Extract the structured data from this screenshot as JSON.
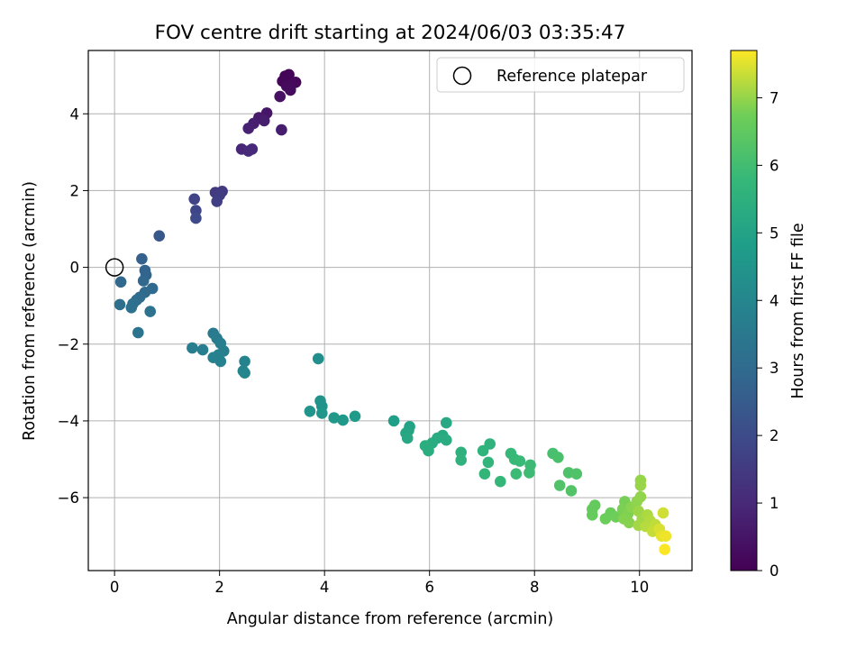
{
  "chart_data": {
    "type": "scatter",
    "title": "FOV centre drift starting at 2024/06/03 03:35:47",
    "xlabel": "Angular distance from reference (arcmin)",
    "ylabel": "Rotation from reference (arcmin)",
    "xlim": [
      -0.5,
      11
    ],
    "ylim": [
      -7.9,
      5.65
    ],
    "xticks": [
      0,
      2,
      4,
      6,
      8,
      10
    ],
    "yticks": [
      -6,
      -4,
      -2,
      0,
      2,
      4
    ],
    "grid": true,
    "legend": {
      "placement": "top-right",
      "entries": [
        {
          "label": "Reference platepar",
          "marker": "open-circle"
        }
      ]
    },
    "reference_point": {
      "x": 0,
      "y": 0
    },
    "colorbar": {
      "label": "Hours from first FF file",
      "range": [
        0,
        7.7
      ],
      "ticks": [
        0,
        1,
        2,
        3,
        4,
        5,
        6,
        7
      ],
      "colormap": "viridis"
    },
    "points": [
      {
        "x": 3.25,
        "y": 4.98,
        "h": 0.05
      },
      {
        "x": 3.32,
        "y": 5.02,
        "h": 0.08
      },
      {
        "x": 3.2,
        "y": 4.85,
        "h": 0.12
      },
      {
        "x": 3.45,
        "y": 4.82,
        "h": 0.15
      },
      {
        "x": 3.38,
        "y": 4.78,
        "h": 0.18
      },
      {
        "x": 3.28,
        "y": 4.72,
        "h": 0.22
      },
      {
        "x": 3.35,
        "y": 4.62,
        "h": 0.28
      },
      {
        "x": 3.15,
        "y": 4.45,
        "h": 0.4
      },
      {
        "x": 2.9,
        "y": 4.02,
        "h": 0.55
      },
      {
        "x": 2.75,
        "y": 3.9,
        "h": 0.62
      },
      {
        "x": 2.85,
        "y": 3.82,
        "h": 0.68
      },
      {
        "x": 2.65,
        "y": 3.75,
        "h": 0.75
      },
      {
        "x": 3.18,
        "y": 3.58,
        "h": 0.72
      },
      {
        "x": 2.55,
        "y": 3.62,
        "h": 0.82
      },
      {
        "x": 2.42,
        "y": 3.08,
        "h": 0.95
      },
      {
        "x": 2.62,
        "y": 3.08,
        "h": 1.0
      },
      {
        "x": 2.55,
        "y": 3.03,
        "h": 1.05
      },
      {
        "x": 2.05,
        "y": 1.98,
        "h": 1.45
      },
      {
        "x": 1.92,
        "y": 1.95,
        "h": 1.5
      },
      {
        "x": 2.0,
        "y": 1.88,
        "h": 1.55
      },
      {
        "x": 1.95,
        "y": 1.72,
        "h": 1.62
      },
      {
        "x": 1.52,
        "y": 1.78,
        "h": 1.75
      },
      {
        "x": 1.55,
        "y": 1.48,
        "h": 1.85
      },
      {
        "x": 1.55,
        "y": 1.28,
        "h": 1.95
      },
      {
        "x": 0.85,
        "y": 0.82,
        "h": 2.35
      },
      {
        "x": 0.52,
        "y": 0.22,
        "h": 2.7
      },
      {
        "x": 0.58,
        "y": -0.08,
        "h": 2.75
      },
      {
        "x": 0.6,
        "y": -0.2,
        "h": 2.8
      },
      {
        "x": 0.55,
        "y": -0.35,
        "h": 2.85
      },
      {
        "x": 0.12,
        "y": -0.38,
        "h": 2.9
      },
      {
        "x": 0.72,
        "y": -0.55,
        "h": 2.95
      },
      {
        "x": 0.58,
        "y": -0.65,
        "h": 3.0
      },
      {
        "x": 0.48,
        "y": -0.78,
        "h": 3.05
      },
      {
        "x": 0.42,
        "y": -0.85,
        "h": 3.1
      },
      {
        "x": 0.1,
        "y": -0.97,
        "h": 3.15
      },
      {
        "x": 0.35,
        "y": -0.95,
        "h": 3.18
      },
      {
        "x": 0.32,
        "y": -1.05,
        "h": 3.22
      },
      {
        "x": 0.68,
        "y": -1.15,
        "h": 3.25
      },
      {
        "x": 0.45,
        "y": -1.7,
        "h": 3.3
      },
      {
        "x": 1.88,
        "y": -1.72,
        "h": 3.55
      },
      {
        "x": 1.95,
        "y": -1.85,
        "h": 3.6
      },
      {
        "x": 2.02,
        "y": -1.98,
        "h": 3.65
      },
      {
        "x": 1.48,
        "y": -2.1,
        "h": 3.7
      },
      {
        "x": 1.68,
        "y": -2.15,
        "h": 3.72
      },
      {
        "x": 2.08,
        "y": -2.18,
        "h": 3.75
      },
      {
        "x": 1.98,
        "y": -2.28,
        "h": 3.78
      },
      {
        "x": 1.88,
        "y": -2.35,
        "h": 3.8
      },
      {
        "x": 2.02,
        "y": -2.45,
        "h": 3.82
      },
      {
        "x": 2.48,
        "y": -2.45,
        "h": 3.88
      },
      {
        "x": 2.45,
        "y": -2.7,
        "h": 3.92
      },
      {
        "x": 2.48,
        "y": -2.75,
        "h": 3.95
      },
      {
        "x": 3.88,
        "y": -2.38,
        "h": 4.3
      },
      {
        "x": 3.92,
        "y": -3.48,
        "h": 4.4
      },
      {
        "x": 3.95,
        "y": -3.62,
        "h": 4.45
      },
      {
        "x": 3.72,
        "y": -3.75,
        "h": 4.5
      },
      {
        "x": 3.95,
        "y": -3.8,
        "h": 4.55
      },
      {
        "x": 4.18,
        "y": -3.92,
        "h": 4.6
      },
      {
        "x": 4.35,
        "y": -3.98,
        "h": 4.65
      },
      {
        "x": 4.58,
        "y": -3.88,
        "h": 4.7
      },
      {
        "x": 5.32,
        "y": -4.0,
        "h": 4.85
      },
      {
        "x": 5.62,
        "y": -4.15,
        "h": 5.0
      },
      {
        "x": 5.6,
        "y": -4.25,
        "h": 5.05
      },
      {
        "x": 5.55,
        "y": -4.32,
        "h": 5.1
      },
      {
        "x": 5.58,
        "y": -4.45,
        "h": 5.15
      },
      {
        "x": 6.32,
        "y": -4.05,
        "h": 5.2
      },
      {
        "x": 6.25,
        "y": -4.38,
        "h": 5.25
      },
      {
        "x": 6.15,
        "y": -4.45,
        "h": 5.3
      },
      {
        "x": 6.32,
        "y": -4.5,
        "h": 5.32
      },
      {
        "x": 6.05,
        "y": -4.58,
        "h": 5.35
      },
      {
        "x": 5.92,
        "y": -4.65,
        "h": 5.38
      },
      {
        "x": 5.98,
        "y": -4.78,
        "h": 5.4
      },
      {
        "x": 6.6,
        "y": -4.82,
        "h": 5.5
      },
      {
        "x": 6.6,
        "y": -5.02,
        "h": 5.55
      },
      {
        "x": 7.15,
        "y": -4.6,
        "h": 5.6
      },
      {
        "x": 7.02,
        "y": -4.78,
        "h": 5.62
      },
      {
        "x": 7.12,
        "y": -5.08,
        "h": 5.65
      },
      {
        "x": 7.05,
        "y": -5.38,
        "h": 5.7
      },
      {
        "x": 7.35,
        "y": -5.58,
        "h": 5.75
      },
      {
        "x": 7.55,
        "y": -4.85,
        "h": 5.8
      },
      {
        "x": 7.62,
        "y": -5.0,
        "h": 5.82
      },
      {
        "x": 7.72,
        "y": -5.05,
        "h": 5.85
      },
      {
        "x": 7.65,
        "y": -5.38,
        "h": 5.88
      },
      {
        "x": 7.92,
        "y": -5.15,
        "h": 5.9
      },
      {
        "x": 7.9,
        "y": -5.35,
        "h": 5.92
      },
      {
        "x": 8.35,
        "y": -4.85,
        "h": 6.1
      },
      {
        "x": 8.45,
        "y": -4.95,
        "h": 6.15
      },
      {
        "x": 8.65,
        "y": -5.35,
        "h": 6.2
      },
      {
        "x": 8.8,
        "y": -5.38,
        "h": 6.22
      },
      {
        "x": 8.48,
        "y": -5.68,
        "h": 6.25
      },
      {
        "x": 8.7,
        "y": -5.82,
        "h": 6.28
      },
      {
        "x": 9.15,
        "y": -6.2,
        "h": 6.55
      },
      {
        "x": 9.1,
        "y": -6.3,
        "h": 6.58
      },
      {
        "x": 9.1,
        "y": -6.45,
        "h": 6.6
      },
      {
        "x": 9.45,
        "y": -6.4,
        "h": 6.65
      },
      {
        "x": 9.35,
        "y": -6.55,
        "h": 6.68
      },
      {
        "x": 9.55,
        "y": -6.5,
        "h": 6.72
      },
      {
        "x": 9.72,
        "y": -6.1,
        "h": 6.8
      },
      {
        "x": 9.68,
        "y": -6.3,
        "h": 6.82
      },
      {
        "x": 9.78,
        "y": -6.42,
        "h": 6.85
      },
      {
        "x": 9.7,
        "y": -6.55,
        "h": 6.88
      },
      {
        "x": 9.8,
        "y": -6.65,
        "h": 6.9
      },
      {
        "x": 9.85,
        "y": -6.25,
        "h": 6.92
      },
      {
        "x": 9.95,
        "y": -6.1,
        "h": 6.95
      },
      {
        "x": 10.02,
        "y": -5.98,
        "h": 6.98
      },
      {
        "x": 10.02,
        "y": -5.55,
        "h": 7.0
      },
      {
        "x": 10.02,
        "y": -5.68,
        "h": 7.02
      },
      {
        "x": 9.98,
        "y": -6.35,
        "h": 7.05
      },
      {
        "x": 10.05,
        "y": -6.55,
        "h": 7.08
      },
      {
        "x": 9.98,
        "y": -6.72,
        "h": 7.1
      },
      {
        "x": 10.15,
        "y": -6.45,
        "h": 7.15
      },
      {
        "x": 10.2,
        "y": -6.6,
        "h": 7.2
      },
      {
        "x": 10.12,
        "y": -6.75,
        "h": 7.22
      },
      {
        "x": 10.3,
        "y": -6.7,
        "h": 7.28
      },
      {
        "x": 10.25,
        "y": -6.88,
        "h": 7.32
      },
      {
        "x": 10.45,
        "y": -6.4,
        "h": 7.4
      },
      {
        "x": 10.38,
        "y": -6.82,
        "h": 7.45
      },
      {
        "x": 10.42,
        "y": -7.0,
        "h": 7.55
      },
      {
        "x": 10.5,
        "y": -7.0,
        "h": 7.6
      },
      {
        "x": 10.48,
        "y": -7.35,
        "h": 7.68
      }
    ]
  }
}
